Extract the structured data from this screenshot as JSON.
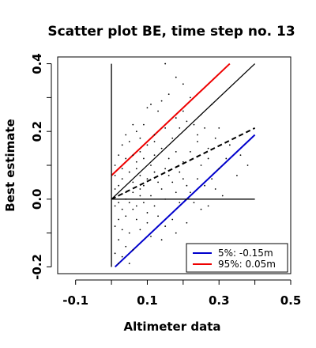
{
  "chart_data": {
    "type": "scatter",
    "title": "Scatter plot BE, time step no. 13",
    "xlabel": "Altimeter data",
    "ylabel": "Best estimate",
    "xlim": [
      -0.15,
      0.5
    ],
    "ylim": [
      -0.22,
      0.42
    ],
    "xticks": [
      -0.1,
      0.1,
      0.3,
      0.5
    ],
    "xtick_labels": [
      "-0.1",
      "0.1",
      "0.3",
      "0.5"
    ],
    "yticks": [
      -0.2,
      0.0,
      0.2,
      0.4
    ],
    "ytick_labels": [
      "-0.2",
      "0.0",
      "0.2",
      "0.4"
    ],
    "grid": false,
    "legend": {
      "position": "bottom-right",
      "entries": [
        {
          "label": "5%: -0.15m",
          "color": "#0000cc"
        },
        {
          "label": "95%:  0.05m",
          "color": "#ee0000"
        }
      ]
    },
    "lines": [
      {
        "style": "solid",
        "color": "#ee0000",
        "points": [
          [
            0.0,
            0.07
          ],
          [
            0.33,
            0.4
          ]
        ]
      },
      {
        "style": "solid",
        "color": "#000000",
        "points": [
          [
            0.0,
            0.0
          ],
          [
            0.4,
            0.4
          ]
        ]
      },
      {
        "style": "dashed",
        "color": "#000000",
        "points": [
          [
            0.0,
            0.0
          ],
          [
            0.4,
            0.21
          ]
        ]
      },
      {
        "style": "solid",
        "color": "#0000cc",
        "points": [
          [
            0.01,
            -0.2
          ],
          [
            0.4,
            0.19
          ]
        ]
      },
      {
        "style": "solid",
        "color": "#000000",
        "points": [
          [
            0.0,
            0.0
          ],
          [
            0.4,
            0.0
          ]
        ]
      },
      {
        "style": "solid",
        "color": "#000000",
        "points": [
          [
            0.0,
            -0.2
          ],
          [
            0.0,
            0.4
          ]
        ]
      }
    ],
    "points": [
      [
        0.15,
        0.4
      ],
      [
        0.18,
        0.36
      ],
      [
        0.2,
        0.34
      ],
      [
        0.22,
        0.3
      ],
      [
        0.2,
        0.26
      ],
      [
        0.25,
        0.25
      ],
      [
        0.14,
        0.29
      ],
      [
        0.16,
        0.31
      ],
      [
        0.28,
        0.28
      ],
      [
        0.11,
        0.28
      ],
      [
        0.1,
        0.27
      ],
      [
        0.13,
        0.26
      ],
      [
        0.21,
        0.23
      ],
      [
        0.23,
        0.22
      ],
      [
        0.26,
        0.21
      ],
      [
        0.19,
        0.21
      ],
      [
        0.15,
        0.21
      ],
      [
        0.09,
        0.22
      ],
      [
        0.06,
        0.22
      ],
      [
        0.07,
        0.2
      ],
      [
        0.04,
        0.19
      ],
      [
        0.12,
        0.19
      ],
      [
        0.17,
        0.18
      ],
      [
        0.24,
        0.17
      ],
      [
        0.29,
        0.18
      ],
      [
        0.33,
        0.16
      ],
      [
        0.27,
        0.15
      ],
      [
        0.22,
        0.14
      ],
      [
        0.18,
        0.14
      ],
      [
        0.14,
        0.15
      ],
      [
        0.1,
        0.16
      ],
      [
        0.05,
        0.17
      ],
      [
        0.03,
        0.16
      ],
      [
        0.08,
        0.14
      ],
      [
        0.12,
        0.13
      ],
      [
        0.16,
        0.12
      ],
      [
        0.2,
        0.11
      ],
      [
        0.25,
        0.1
      ],
      [
        0.3,
        0.09
      ],
      [
        0.35,
        0.07
      ],
      [
        0.28,
        0.06
      ],
      [
        0.24,
        0.06
      ],
      [
        0.19,
        0.08
      ],
      [
        0.15,
        0.09
      ],
      [
        0.11,
        0.1
      ],
      [
        0.07,
        0.11
      ],
      [
        0.04,
        0.12
      ],
      [
        0.02,
        0.13
      ],
      [
        0.01,
        0.1
      ],
      [
        0.03,
        0.09
      ],
      [
        0.05,
        0.08
      ],
      [
        0.08,
        0.07
      ],
      [
        0.1,
        0.06
      ],
      [
        0.13,
        0.05
      ],
      [
        0.17,
        0.05
      ],
      [
        0.21,
        0.04
      ],
      [
        0.26,
        0.04
      ],
      [
        0.29,
        0.03
      ],
      [
        0.22,
        0.02
      ],
      [
        0.18,
        0.02
      ],
      [
        0.14,
        0.03
      ],
      [
        0.09,
        0.04
      ],
      [
        0.06,
        0.05
      ],
      [
        0.03,
        0.06
      ],
      [
        0.02,
        0.04
      ],
      [
        0.01,
        0.03
      ],
      [
        0.04,
        0.02
      ],
      [
        0.06,
        0.02
      ],
      [
        0.08,
        0.01
      ],
      [
        0.11,
        0.01
      ],
      [
        0.15,
        0.0
      ],
      [
        0.19,
        -0.01
      ],
      [
        0.23,
        -0.01
      ],
      [
        0.27,
        -0.02
      ],
      [
        0.12,
        -0.02
      ],
      [
        0.09,
        -0.01
      ],
      [
        0.05,
        -0.01
      ],
      [
        0.02,
        -0.01
      ],
      [
        0.01,
        -0.02
      ],
      [
        0.03,
        -0.03
      ],
      [
        0.06,
        -0.03
      ],
      [
        0.1,
        -0.04
      ],
      [
        0.13,
        -0.05
      ],
      [
        0.17,
        -0.06
      ],
      [
        0.21,
        -0.07
      ],
      [
        0.07,
        -0.06
      ],
      [
        0.04,
        -0.05
      ],
      [
        0.02,
        -0.06
      ],
      [
        0.01,
        -0.08
      ],
      [
        0.03,
        -0.09
      ],
      [
        0.05,
        -0.1
      ],
      [
        0.08,
        -0.09
      ],
      [
        0.11,
        -0.11
      ],
      [
        0.14,
        -0.12
      ],
      [
        0.18,
        -0.1
      ],
      [
        0.02,
        -0.12
      ],
      [
        0.04,
        -0.14
      ],
      [
        0.06,
        -0.15
      ],
      [
        0.03,
        -0.17
      ],
      [
        0.05,
        -0.19
      ],
      [
        0.01,
        -0.16
      ],
      [
        0.02,
        -0.19
      ],
      [
        0.3,
        0.21
      ],
      [
        0.32,
        0.12
      ],
      [
        0.36,
        0.13
      ],
      [
        0.38,
        0.1
      ],
      [
        0.31,
        0.01
      ],
      [
        0.25,
        -0.03
      ],
      [
        0.16,
        0.07
      ],
      [
        0.2,
        0.06
      ],
      [
        0.07,
        0.09
      ],
      [
        0.09,
        0.12
      ],
      [
        0.12,
        0.08
      ],
      [
        0.01,
        0.07
      ],
      [
        0.02,
        0.01
      ],
      [
        0.04,
        0.0
      ],
      [
        0.07,
        -0.02
      ],
      [
        0.08,
        0.03
      ],
      [
        0.1,
        -0.07
      ],
      [
        0.15,
        -0.08
      ],
      [
        0.12,
        0.17
      ],
      [
        0.08,
        0.18
      ],
      [
        0.06,
        0.13
      ],
      [
        0.18,
        0.24
      ],
      [
        0.24,
        0.19
      ],
      [
        0.27,
        0.12
      ]
    ]
  }
}
